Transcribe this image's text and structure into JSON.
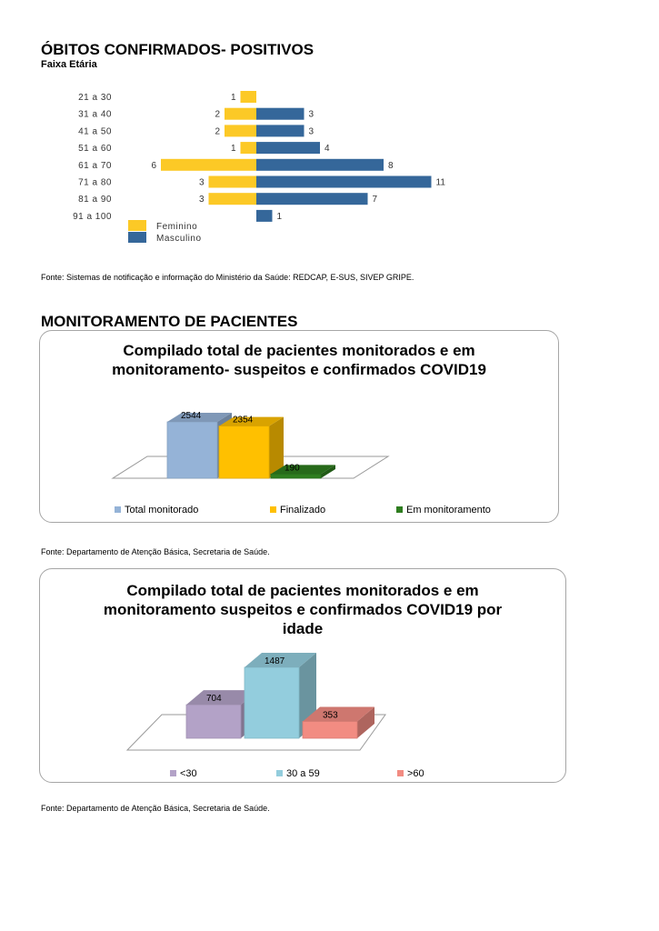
{
  "obitos": {
    "title": "ÓBITOS CONFIRMADOS- POSITIVOS",
    "subtitle": "Faixa Etária",
    "fonte": "Fonte:  Sistemas de notificação e informação do Ministério da Saúde: REDCAP, E-SUS, SIVEP GRIPE."
  },
  "monitor": {
    "title": "MONITORAMENTO DE PACIENTES",
    "fonte1": "Fonte:  Departamento de Atenção Básica, Secretaria de Saúde.",
    "fonte2": "Fonte:  Departamento de Atenção Básica, Secretaria de Saúde."
  },
  "chart_data": [
    {
      "type": "bar",
      "orientation": "horizontal-diverging",
      "categories": [
        "21 a 30",
        "31 a 40",
        "41 a 50",
        "51 a 60",
        "61 a 70",
        "71 a 80",
        "81 a 90",
        "91 a 100"
      ],
      "series": [
        {
          "name": "Feminino",
          "values": [
            1,
            2,
            2,
            1,
            6,
            3,
            3,
            0
          ],
          "color": "#FCC926"
        },
        {
          "name": "Masculino",
          "values": [
            0,
            3,
            3,
            4,
            8,
            11,
            7,
            1
          ],
          "color": "#35679A"
        }
      ],
      "legend": "bottom-left"
    },
    {
      "type": "bar",
      "style": "3d",
      "title": "Compilado total de pacientes monitorados e em monitoramento- suspeitos e confirmados COVID19",
      "categories": [
        "Total monitorado",
        "Finalizado",
        "Em monitoramento"
      ],
      "values": [
        2544,
        2354,
        190
      ],
      "colors": [
        "#95B3D7",
        "#FFC000",
        "#2E7D1F"
      ],
      "legend": "bottom"
    },
    {
      "type": "bar",
      "style": "3d",
      "title": "Compilado total de pacientes monitorados e em monitoramento suspeitos e confirmados COVID19 por idade",
      "categories": [
        "<30",
        "30 a 59",
        ">60"
      ],
      "values": [
        704,
        1487,
        353
      ],
      "colors": [
        "#B3A2C7",
        "#93CDDD",
        "#F28C82"
      ],
      "legend": "bottom"
    }
  ]
}
